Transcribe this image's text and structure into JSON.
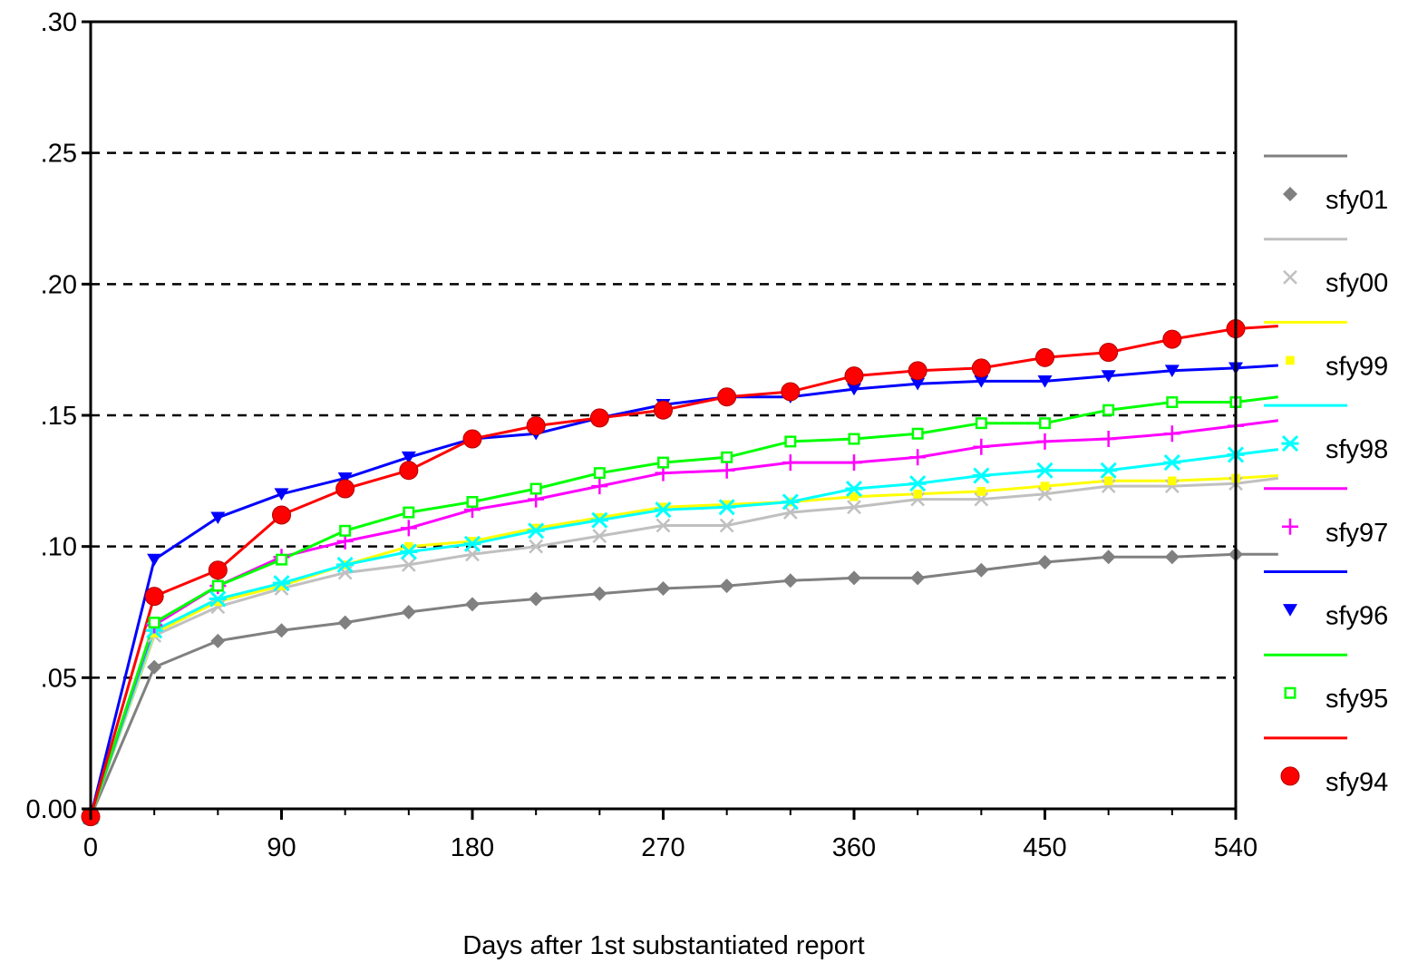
{
  "chart_data": {
    "type": "line",
    "title": "",
    "xlabel": "Days after 1st substantiated report",
    "ylabel": "",
    "xlim": [
      0,
      540
    ],
    "ylim": [
      0,
      0.3
    ],
    "x_ticks": [
      0,
      90,
      180,
      270,
      360,
      450,
      540
    ],
    "x_tick_labels": [
      "0",
      "90",
      "180",
      "270",
      "360",
      "450",
      "540"
    ],
    "y_ticks": [
      0,
      0.05,
      0.1,
      0.15,
      0.2,
      0.25,
      0.3
    ],
    "y_tick_labels": [
      "0.00",
      ".05",
      ".10",
      ".15",
      ".20",
      ".25",
      ".30"
    ],
    "grid": "horizontal dashed",
    "legend_position": "right",
    "x": [
      0,
      30,
      60,
      90,
      120,
      150,
      180,
      210,
      240,
      270,
      300,
      330,
      360,
      390,
      420,
      450,
      480,
      510,
      540,
      560
    ],
    "series": [
      {
        "name": "sfy01",
        "color": "#808080",
        "marker": "diamond",
        "values": [
          -0.003,
          0.054,
          0.064,
          0.068,
          0.071,
          0.075,
          0.078,
          0.08,
          0.082,
          0.084,
          0.085,
          0.087,
          0.088,
          0.088,
          0.091,
          0.094,
          0.096,
          0.096,
          0.097,
          0.097
        ]
      },
      {
        "name": "sfy00",
        "color": "#c0c0c0",
        "marker": "x",
        "values": [
          -0.003,
          0.066,
          0.077,
          0.084,
          0.09,
          0.093,
          0.097,
          0.1,
          0.104,
          0.108,
          0.108,
          0.113,
          0.115,
          0.118,
          0.118,
          0.12,
          0.123,
          0.123,
          0.124,
          0.126
        ]
      },
      {
        "name": "sfy99",
        "color": "#ffff00",
        "marker": "square-filled",
        "values": [
          -0.003,
          0.067,
          0.079,
          0.085,
          0.093,
          0.1,
          0.102,
          0.107,
          0.111,
          0.115,
          0.116,
          0.117,
          0.119,
          0.12,
          0.121,
          0.123,
          0.125,
          0.125,
          0.126,
          0.127
        ]
      },
      {
        "name": "sfy98",
        "color": "#00ffff",
        "marker": "asterisk",
        "values": [
          -0.003,
          0.068,
          0.08,
          0.086,
          0.093,
          0.098,
          0.101,
          0.106,
          0.11,
          0.114,
          0.115,
          0.117,
          0.122,
          0.124,
          0.127,
          0.129,
          0.129,
          0.132,
          0.135,
          0.137
        ]
      },
      {
        "name": "sfy97",
        "color": "#ff00ff",
        "marker": "plus",
        "values": [
          -0.003,
          0.07,
          0.085,
          0.096,
          0.102,
          0.107,
          0.114,
          0.118,
          0.123,
          0.128,
          0.129,
          0.132,
          0.132,
          0.134,
          0.138,
          0.14,
          0.141,
          0.143,
          0.146,
          0.148
        ]
      },
      {
        "name": "sfy96",
        "color": "#0000ff",
        "marker": "triangle-down",
        "values": [
          -0.003,
          0.095,
          0.111,
          0.12,
          0.126,
          0.134,
          0.141,
          0.143,
          0.149,
          0.154,
          0.157,
          0.157,
          0.16,
          0.162,
          0.163,
          0.163,
          0.165,
          0.167,
          0.168,
          0.169
        ]
      },
      {
        "name": "sfy95",
        "color": "#00ff00",
        "marker": "square-open",
        "values": [
          -0.003,
          0.071,
          0.085,
          0.095,
          0.106,
          0.113,
          0.117,
          0.122,
          0.128,
          0.132,
          0.134,
          0.14,
          0.141,
          0.143,
          0.147,
          0.147,
          0.152,
          0.155,
          0.155,
          0.157
        ]
      },
      {
        "name": "sfy94",
        "color": "#ff0000",
        "marker": "circle",
        "values": [
          -0.003,
          0.081,
          0.091,
          0.112,
          0.122,
          0.129,
          0.141,
          0.146,
          0.149,
          0.152,
          0.157,
          0.159,
          0.165,
          0.167,
          0.168,
          0.172,
          0.174,
          0.179,
          0.183,
          0.184
        ]
      }
    ]
  }
}
